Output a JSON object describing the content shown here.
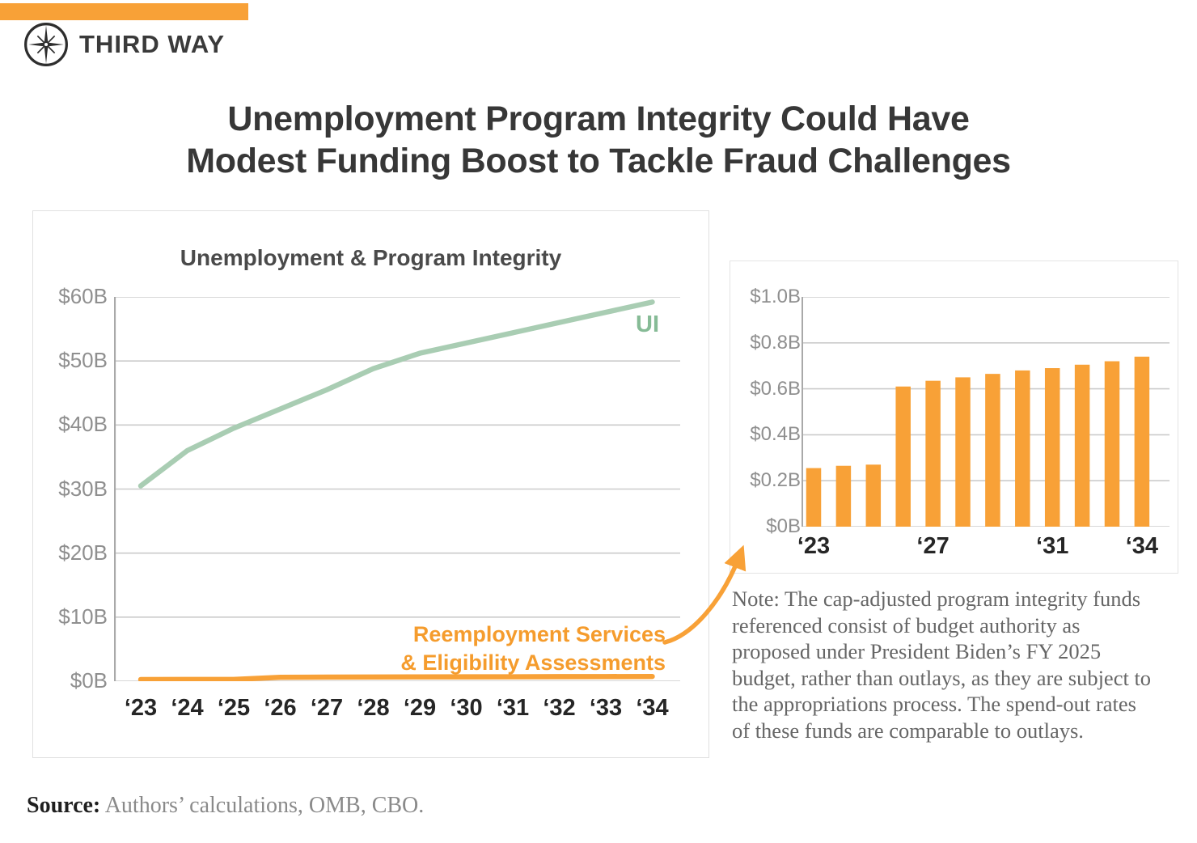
{
  "brand": {
    "name": "THIRD WAY"
  },
  "title": {
    "line1": "Unemployment Program Integrity Could Have",
    "line2": "Modest Funding Boost to Tackle Fraud Challenges"
  },
  "main_chart": {
    "title": "Unemployment & Program Integrity",
    "ui_label": "UI",
    "resea_label_line1": "Reemployment Services",
    "resea_label_line2": "& Eligibility Assessments"
  },
  "chart_data": [
    {
      "type": "line",
      "title": "Unemployment & Program Integrity",
      "categories": [
        "‘23",
        "‘24",
        "‘25",
        "‘26",
        "‘27",
        "‘28",
        "‘29",
        "‘30",
        "‘31",
        "‘32",
        "‘33",
        "‘34"
      ],
      "unit": "billions of dollars",
      "series": [
        {
          "name": "UI",
          "color": "#A9CDB3",
          "values": [
            30.5,
            36.0,
            39.5,
            42.5,
            45.5,
            48.8,
            51.2,
            52.8,
            54.4,
            56.0,
            57.6,
            59.2
          ]
        },
        {
          "name": "Reemployment Services & Eligibility Assessments",
          "color": "#F8A137",
          "values": [
            0.26,
            0.27,
            0.27,
            0.61,
            0.64,
            0.65,
            0.67,
            0.68,
            0.69,
            0.71,
            0.72,
            0.74
          ]
        }
      ],
      "ylim": [
        0,
        60
      ],
      "y_ticks": [
        "$60B",
        "$50B",
        "$40B",
        "$30B",
        "$20B",
        "$10B",
        "$0B"
      ],
      "grid": true,
      "legend_position": "inline-annotations"
    },
    {
      "type": "bar",
      "title": "Reemployment Services & Eligibility Assessments (zoomed)",
      "categories": [
        "‘23",
        "‘24",
        "‘25",
        "‘26",
        "‘27",
        "‘28",
        "‘29",
        "‘30",
        "‘31",
        "‘32",
        "‘33",
        "‘34"
      ],
      "unit": "billions of dollars",
      "color": "#F8A137",
      "values": [
        0.255,
        0.265,
        0.27,
        0.61,
        0.635,
        0.65,
        0.665,
        0.68,
        0.69,
        0.705,
        0.72,
        0.74
      ],
      "ylim": [
        0,
        1.0
      ],
      "y_ticks": [
        "$1.0B",
        "$0.8B",
        "$0.6B",
        "$0.4B",
        "$0.2B",
        "$0B"
      ],
      "x_ticks": [
        {
          "index": 0,
          "label": "‘23"
        },
        {
          "index": 4,
          "label": "‘27"
        },
        {
          "index": 8,
          "label": "‘31"
        },
        {
          "index": 11,
          "label": "‘34"
        }
      ],
      "grid": true
    }
  ],
  "note": {
    "text": "Note: The cap-adjusted program integrity funds referenced consist of budget authority as proposed under President Biden’s FY 2025 budget, rather than outlays, as they are subject to the appropriations process. The spend-out rates of these funds are comparable to outlays."
  },
  "source": {
    "label": "Source:",
    "text": " Authors’ calculations, OMB, CBO."
  },
  "colors": {
    "accent_orange": "#F8A137",
    "line_green": "#A9CDB3",
    "green_label": "#86BB96",
    "orange_label": "#F59C2D",
    "gridline": "#CBCBCB",
    "axis": "#A9A9A9",
    "dark_text": "#373737"
  }
}
